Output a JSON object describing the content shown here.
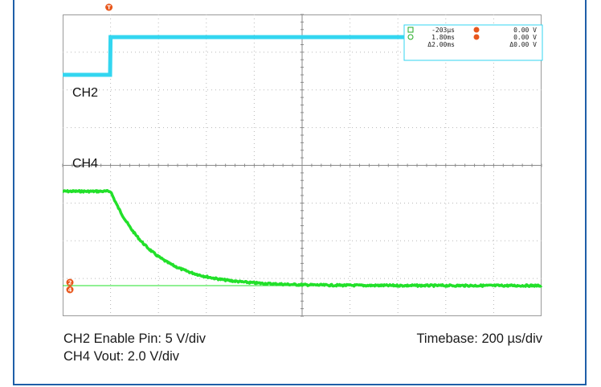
{
  "chart_data": {
    "type": "line",
    "xlabel": "",
    "ylabel": "",
    "grid": true,
    "divisions": {
      "x": 10,
      "y": 8
    },
    "xlim_us": [
      -200,
      1800
    ],
    "x_per_div_us": 200,
    "trigger_time_us": 0,
    "series": [
      {
        "name": "CH2",
        "color": "#33d6f0",
        "volts_per_div": 5,
        "description_points": [
          [
            -200,
            0
          ],
          [
            -2,
            0
          ],
          [
            0,
            5
          ],
          [
            1800,
            5
          ]
        ]
      },
      {
        "name": "CH4",
        "color": "#22e02a",
        "volts_per_div": 2.0,
        "initial_v": 5.0,
        "final_v": 0.0,
        "tau_us": 170,
        "points": [
          [
            -200,
            5.0
          ],
          [
            0,
            5.0
          ],
          [
            100,
            2.8
          ],
          [
            200,
            1.55
          ],
          [
            300,
            0.87
          ],
          [
            400,
            0.48
          ],
          [
            600,
            0.15
          ],
          [
            800,
            0.05
          ],
          [
            1000,
            0.02
          ],
          [
            1800,
            0.0
          ]
        ]
      }
    ],
    "channel_labels": [
      "CH2",
      "CH4"
    ],
    "cursor_readout": {
      "rows": [
        [
          "-203µs",
          "0.00 V"
        ],
        [
          "1.80ms",
          "0.00 V"
        ],
        [
          "Δ2.00ms",
          "Δ0.00 V"
        ]
      ]
    },
    "trigger_marker": "T",
    "ground_markers": [
      "2",
      "4"
    ]
  },
  "captions": {
    "ch2": "CH2 Enable Pin: 5 V/div",
    "ch4": "CH4 Vout: 2.0 V/div",
    "timebase": "Timebase: 200 µs/div"
  },
  "colors": {
    "border": "#1f5fa8",
    "grid": "#b8b8b8",
    "cursor_marker": "#e8571c",
    "readout_box": "#33d6f0"
  }
}
